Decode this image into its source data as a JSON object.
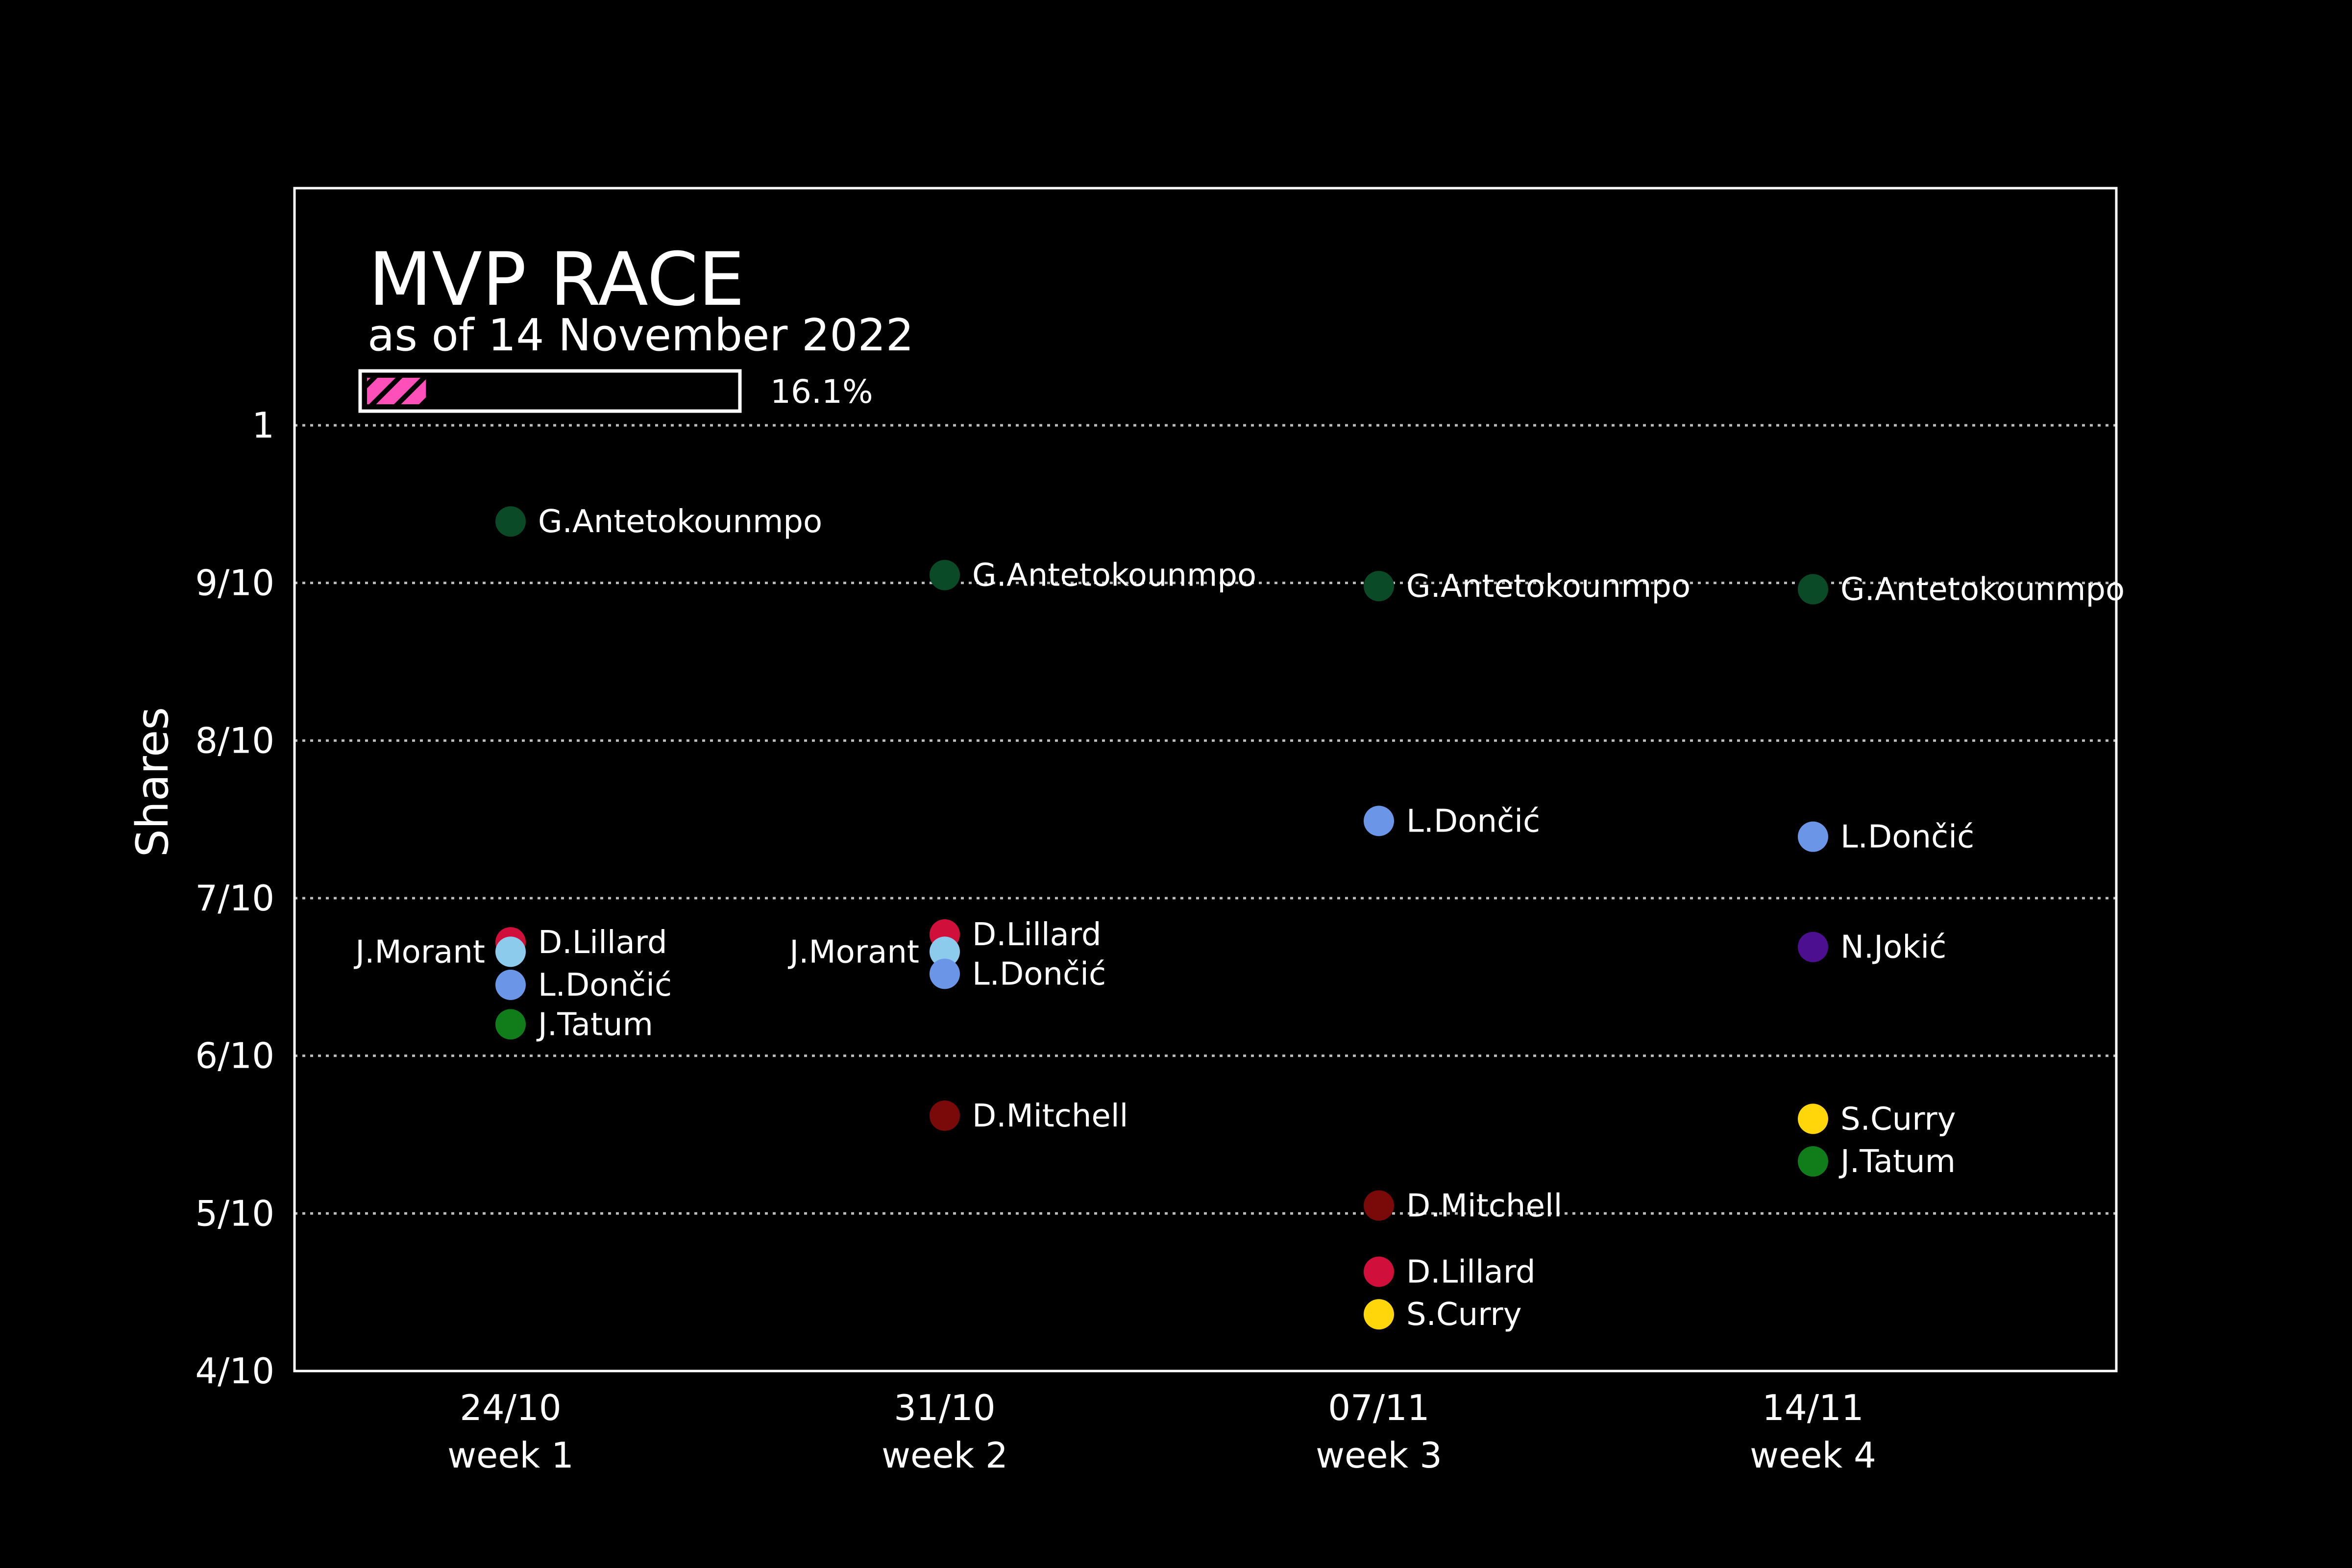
{
  "chart_data": {
    "type": "scatter",
    "title": "MVP RACE",
    "subtitle": "as of 14 November 2022",
    "progress": {
      "value": 0.161,
      "label": "16.1%",
      "color": "#ff4fb8"
    },
    "ylabel": "Shares",
    "ylim": [
      0.4,
      1.0
    ],
    "yticks": [
      {
        "value": 0.4,
        "label": "4/10"
      },
      {
        "value": 0.5,
        "label": "5/10"
      },
      {
        "value": 0.6,
        "label": "6/10"
      },
      {
        "value": 0.7,
        "label": "7/10"
      },
      {
        "value": 0.8,
        "label": "8/10"
      },
      {
        "value": 0.9,
        "label": "9/10"
      },
      {
        "value": 1.0,
        "label": "1"
      }
    ],
    "grid": true,
    "categories": [
      {
        "date": "24/10",
        "week": "week 1"
      },
      {
        "date": "31/10",
        "week": "week 2"
      },
      {
        "date": "07/11",
        "week": "week 3"
      },
      {
        "date": "14/11",
        "week": "week 4"
      }
    ],
    "colors": {
      "G.Antetokounmpo": "#0b4a26",
      "D.Lillard": "#d0103a",
      "J.Morant": "#8ccbeb",
      "L.Dončić": "#6b96e8",
      "J.Tatum": "#117d1a",
      "D.Mitchell": "#7a0a0a",
      "S.Curry": "#ffd60a",
      "N.Jokić": "#4b0f8f"
    },
    "points": [
      {
        "week": 0,
        "player": "G.Antetokounmpo",
        "value": 0.939
      },
      {
        "week": 0,
        "player": "D.Lillard",
        "value": 0.672
      },
      {
        "week": 0,
        "player": "J.Morant",
        "value": 0.666,
        "label_side": "left"
      },
      {
        "week": 0,
        "player": "L.Dončić",
        "value": 0.645
      },
      {
        "week": 0,
        "player": "J.Tatum",
        "value": 0.62
      },
      {
        "week": 1,
        "player": "G.Antetokounmpo",
        "value": 0.905
      },
      {
        "week": 1,
        "player": "D.Lillard",
        "value": 0.677
      },
      {
        "week": 1,
        "player": "J.Morant",
        "value": 0.666,
        "label_side": "left"
      },
      {
        "week": 1,
        "player": "L.Dončić",
        "value": 0.652
      },
      {
        "week": 1,
        "player": "D.Mitchell",
        "value": 0.562
      },
      {
        "week": 2,
        "player": "G.Antetokounmpo",
        "value": 0.898
      },
      {
        "week": 2,
        "player": "L.Dončić",
        "value": 0.749
      },
      {
        "week": 2,
        "player": "D.Mitchell",
        "value": 0.505
      },
      {
        "week": 2,
        "player": "D.Lillard",
        "value": 0.463
      },
      {
        "week": 2,
        "player": "S.Curry",
        "value": 0.436
      },
      {
        "week": 3,
        "player": "G.Antetokounmpo",
        "value": 0.896
      },
      {
        "week": 3,
        "player": "L.Dončić",
        "value": 0.739
      },
      {
        "week": 3,
        "player": "N.Jokić",
        "value": 0.669
      },
      {
        "week": 3,
        "player": "S.Curry",
        "value": 0.56
      },
      {
        "week": 3,
        "player": "J.Tatum",
        "value": 0.533
      }
    ]
  }
}
